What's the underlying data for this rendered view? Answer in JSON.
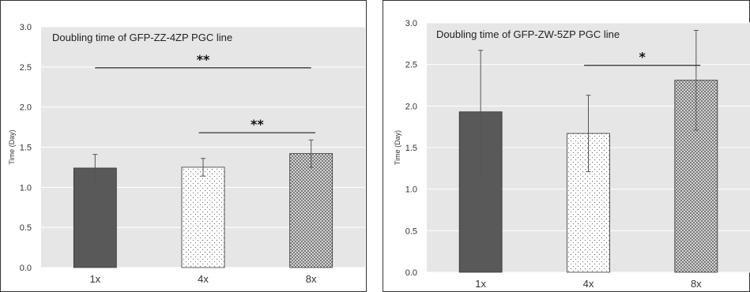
{
  "chart_data": [
    {
      "type": "bar",
      "title": "Doubling time of GFP-ZZ-4ZP PGC line",
      "ylabel": "Time (Day)",
      "xlabel": "",
      "categories": [
        "1x",
        "4x",
        "8x"
      ],
      "values": [
        1.24,
        1.25,
        1.42
      ],
      "errors": [
        0.17,
        0.11,
        0.17
      ],
      "ylim": [
        0.0,
        3.0
      ],
      "yticks": [
        "0.0",
        "0.5",
        "1.0",
        "1.5",
        "2.0",
        "2.5",
        "3.0"
      ],
      "grid": true,
      "bar_colors": [
        "#595959",
        "#ffffff",
        "#d9d9d9"
      ],
      "significance": [
        {
          "from": 0,
          "to": 2,
          "y": 2.49,
          "label": "**"
        },
        {
          "from": 1,
          "to": 2,
          "y": 1.68,
          "label": "**"
        }
      ]
    },
    {
      "type": "bar",
      "title": "Doubling time of GFP-ZW-5ZP PGC line",
      "ylabel": "Time (Day)",
      "xlabel": "",
      "categories": [
        "1x",
        "4x",
        "8x"
      ],
      "values": [
        1.93,
        1.67,
        2.31
      ],
      "errors": [
        0.74,
        0.46,
        0.6
      ],
      "ylim": [
        0.0,
        3.0
      ],
      "yticks": [
        "0.0",
        "0.5",
        "1.0",
        "1.5",
        "2.0",
        "2.5",
        "3.0"
      ],
      "grid": true,
      "bar_colors": [
        "#595959",
        "#ffffff",
        "#d9d9d9"
      ],
      "significance": [
        {
          "from": 1,
          "to": 2,
          "y": 2.49,
          "label": "*"
        }
      ]
    }
  ]
}
